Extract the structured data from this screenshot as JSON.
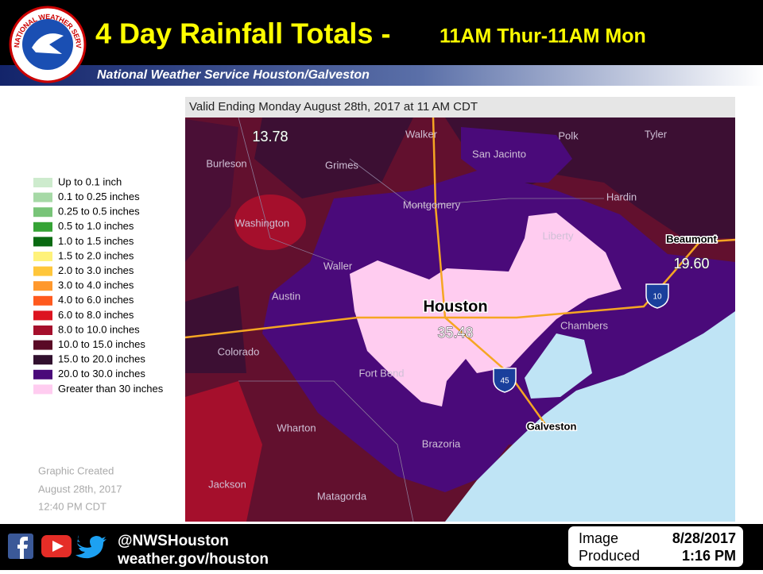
{
  "header": {
    "logo_text": "NATIONAL WEATHER SERVICE",
    "title": "4 Day Rainfall Totals -",
    "title_suffix": "11AM Thur-11AM Mon",
    "subtitle": "National Weather Service Houston/Galveston"
  },
  "map": {
    "caption": "Valid Ending Monday August 28th, 2017 at 11 AM CDT",
    "places": [
      "Walker",
      "Polk",
      "Tyler",
      "San Jacinto",
      "Burleson",
      "Grimes",
      "Montgomery",
      "Hardin",
      "Washington",
      "Liberty",
      "Beaumont",
      "Waller",
      "Austin",
      "Houston",
      "Chambers",
      "Colorado",
      "Fort Bend",
      "Galveston",
      "Wharton",
      "Brazoria",
      "Jackson",
      "Matagorda"
    ],
    "shields": [
      "10",
      "45"
    ],
    "rain_totals": {
      "values": [
        13.78,
        35.48,
        19.6
      ],
      "value_labels": [
        "13.78",
        "35.48",
        "19.60"
      ]
    }
  },
  "legend": {
    "items": [
      {
        "label": "Up to 0.1 inch",
        "color": "#cdebcd"
      },
      {
        "label": "0.1 to 0.25 inches",
        "color": "#a6d9a6"
      },
      {
        "label": "0.25 to 0.5 inches",
        "color": "#78c478"
      },
      {
        "label": "0.5 to 1.0 inches",
        "color": "#35a335"
      },
      {
        "label": "1.0 to 1.5 inches",
        "color": "#0a6a12"
      },
      {
        "label": "1.5 to 2.0 inches",
        "color": "#fff27a"
      },
      {
        "label": "2.0 to 3.0 inches",
        "color": "#ffc63a"
      },
      {
        "label": "3.0 to 4.0 inches",
        "color": "#ff982c"
      },
      {
        "label": "4.0 to 6.0 inches",
        "color": "#ff5a1e"
      },
      {
        "label": "6.0 to 8.0 inches",
        "color": "#dc1420"
      },
      {
        "label": "8.0 to 10.0 inches",
        "color": "#a50f2c"
      },
      {
        "label": "10.0 to 15.0 inches",
        "color": "#5a0a26"
      },
      {
        "label": "15.0 to 20.0 inches",
        "color": "#31102e"
      },
      {
        "label": "20.0 to 30.0 inches",
        "color": "#4a0a7a"
      },
      {
        "label": "Greater than 30 inches",
        "color": "#ffccf0"
      }
    ]
  },
  "created": [
    "Graphic Created",
    "August 28th, 2017",
    "12:40 PM CDT"
  ],
  "footer": {
    "handle": "@NWSHouston",
    "url": "weather.gov/houston",
    "image_label": "Image",
    "produced_label": "Produced",
    "date": "8/28/2017",
    "time": "1:16 PM"
  }
}
